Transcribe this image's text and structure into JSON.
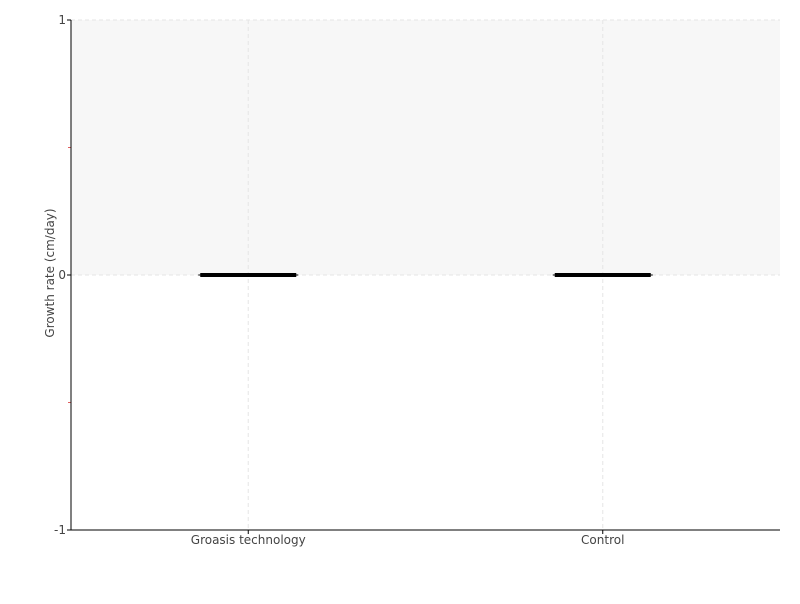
{
  "chart_data": {
    "type": "box",
    "title": "",
    "xlabel": "",
    "ylabel": "Growth rate (cm/day)",
    "categories": [
      "Groasis technology",
      "Control"
    ],
    "series": [
      {
        "values": [
          {
            "min": 0,
            "q1": 0,
            "median": 0,
            "q3": 0,
            "max": 0
          },
          {
            "min": 0,
            "q1": 0,
            "median": 0,
            "q3": 0,
            "max": 0
          }
        ]
      }
    ],
    "ylim": [
      -1,
      1
    ],
    "yticks": [
      "-1",
      "0",
      "1"
    ],
    "grid": true,
    "shaded_region": [
      0,
      1
    ],
    "colors": {
      "box": "#000000",
      "axis": "#000000",
      "grid": "#e6e6e6",
      "shade": "#f7f7f7",
      "minor_tick": "#e06060"
    }
  }
}
